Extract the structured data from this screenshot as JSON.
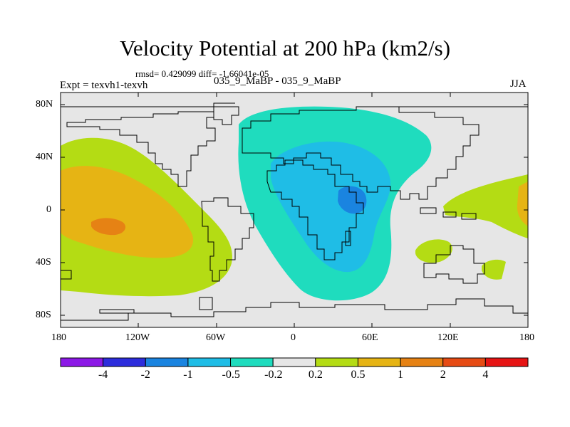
{
  "title": "Velocity Potential at 200 hPa (km2/s)",
  "stats": "rmsd= 0.429099  diff= -1.66041e-05",
  "experiment": "Expt = texvh1-texvh",
  "case": "035_9_MaBP - 035_9_MaBP",
  "season": "JJA",
  "lat_labels": [
    "80N",
    "40N",
    "0",
    "40S",
    "80S"
  ],
  "lon_labels": [
    "180",
    "120W",
    "60W",
    "0",
    "60E",
    "120E",
    "180"
  ],
  "colorbar": {
    "colors": [
      "#8c19e6",
      "#2d2ddc",
      "#1a84e0",
      "#1fbde6",
      "#1fdcbe",
      "#e6e6e6",
      "#b4dc14",
      "#e6b414",
      "#e68214",
      "#e64b14",
      "#e61414"
    ],
    "labels": [
      "-4",
      "-2",
      "-1",
      "-0.5",
      "-0.2",
      "0.2",
      "0.5",
      "1",
      "2",
      "4"
    ]
  },
  "colors": {
    "background": "#e6e6e6",
    "neg_level1": "#1fdcbe",
    "neg_level2": "#1fbde6",
    "neg_level3": "#1a84e0",
    "pos_level1": "#b4dc14",
    "pos_level2": "#e6b414",
    "pos_level3": "#e68214"
  }
}
